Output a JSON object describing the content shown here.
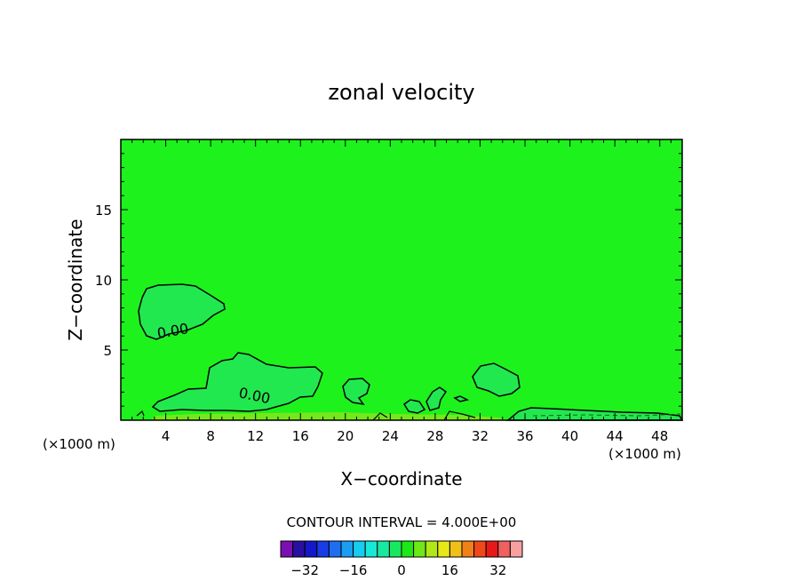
{
  "chart_data": {
    "type": "heatmap",
    "title": "zonal velocity",
    "xlabel": "X−coordinate",
    "ylabel": "Z−coordinate",
    "x_unit_left": "(×1000 m)",
    "x_unit_right": "(×1000 m)",
    "xlim": [
      0,
      50
    ],
    "ylim": [
      0,
      20
    ],
    "x_ticks": [
      4,
      8,
      12,
      16,
      20,
      24,
      28,
      32,
      36,
      40,
      44,
      48
    ],
    "y_ticks": [
      5,
      10,
      15
    ],
    "contour_label": "0.00",
    "contour_interval_text": "CONTOUR INTERVAL = 4.000E+00",
    "colorbar": {
      "colors": [
        "#7a10b0",
        "#2a10a0",
        "#1418c8",
        "#1a3ce6",
        "#1f6ef0",
        "#1a9ef0",
        "#18ccf0",
        "#18e8d8",
        "#18e8a0",
        "#18e860",
        "#1ce818",
        "#6ee818",
        "#b0e818",
        "#e8e818",
        "#f0c018",
        "#f08018",
        "#f04818",
        "#e81818",
        "#f06060",
        "#f8a0a0"
      ],
      "tick_values": [
        -32,
        -16,
        0,
        16,
        32
      ],
      "tick_labels": [
        "−32",
        "−16",
        "0",
        "16",
        "32"
      ],
      "range": [
        -40,
        40
      ]
    },
    "colors": {
      "field": "#1df21d",
      "positive_region": "#22e84f",
      "near_surface": "#74e81a"
    }
  }
}
